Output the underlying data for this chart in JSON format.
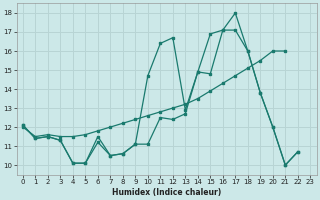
{
  "xlabel": "Humidex (Indice chaleur)",
  "bg_color": "#cce8e8",
  "grid_color": "#b8d4d4",
  "line_color": "#1a7a6e",
  "xlim": [
    -0.5,
    23.5
  ],
  "ylim": [
    9.5,
    18.5
  ],
  "yticks": [
    10,
    11,
    12,
    13,
    14,
    15,
    16,
    17,
    18
  ],
  "xticks": [
    0,
    1,
    2,
    3,
    4,
    5,
    6,
    7,
    8,
    9,
    10,
    11,
    12,
    13,
    14,
    15,
    16,
    17,
    18,
    19,
    20,
    21,
    22,
    23
  ],
  "line1_x": [
    0,
    1,
    2,
    3,
    4,
    5,
    6,
    7,
    8,
    9,
    10,
    11,
    12,
    13,
    14,
    15,
    16,
    17,
    18,
    19,
    20,
    21,
    22
  ],
  "line1_y": [
    12.1,
    11.4,
    11.5,
    11.3,
    10.1,
    10.1,
    11.5,
    10.5,
    10.6,
    11.1,
    14.7,
    16.4,
    16.7,
    12.9,
    14.9,
    14.8,
    17.1,
    17.1,
    16.0,
    13.8,
    12.0,
    10.0,
    10.7
  ],
  "line2_x": [
    0,
    1,
    2,
    3,
    4,
    5,
    6,
    7,
    8,
    9,
    10,
    11,
    12,
    13,
    14,
    15,
    16,
    17,
    18,
    19,
    20,
    21,
    22
  ],
  "line2_y": [
    12.1,
    11.4,
    11.5,
    11.3,
    10.1,
    10.1,
    11.2,
    10.5,
    10.6,
    11.1,
    11.1,
    12.5,
    12.4,
    12.7,
    14.9,
    16.9,
    17.1,
    18.0,
    16.0,
    13.8,
    12.0,
    10.0,
    10.7
  ],
  "line3_x": [
    0,
    1,
    2,
    3,
    4,
    5,
    6,
    7,
    8,
    9,
    10,
    11,
    12,
    13,
    14,
    15,
    16,
    17,
    18,
    19,
    20,
    21
  ],
  "line3_y": [
    12.0,
    11.5,
    11.6,
    11.5,
    11.5,
    11.6,
    11.8,
    12.0,
    12.2,
    12.4,
    12.6,
    12.8,
    13.0,
    13.2,
    13.5,
    13.9,
    14.3,
    14.7,
    15.1,
    15.5,
    16.0,
    16.0
  ]
}
